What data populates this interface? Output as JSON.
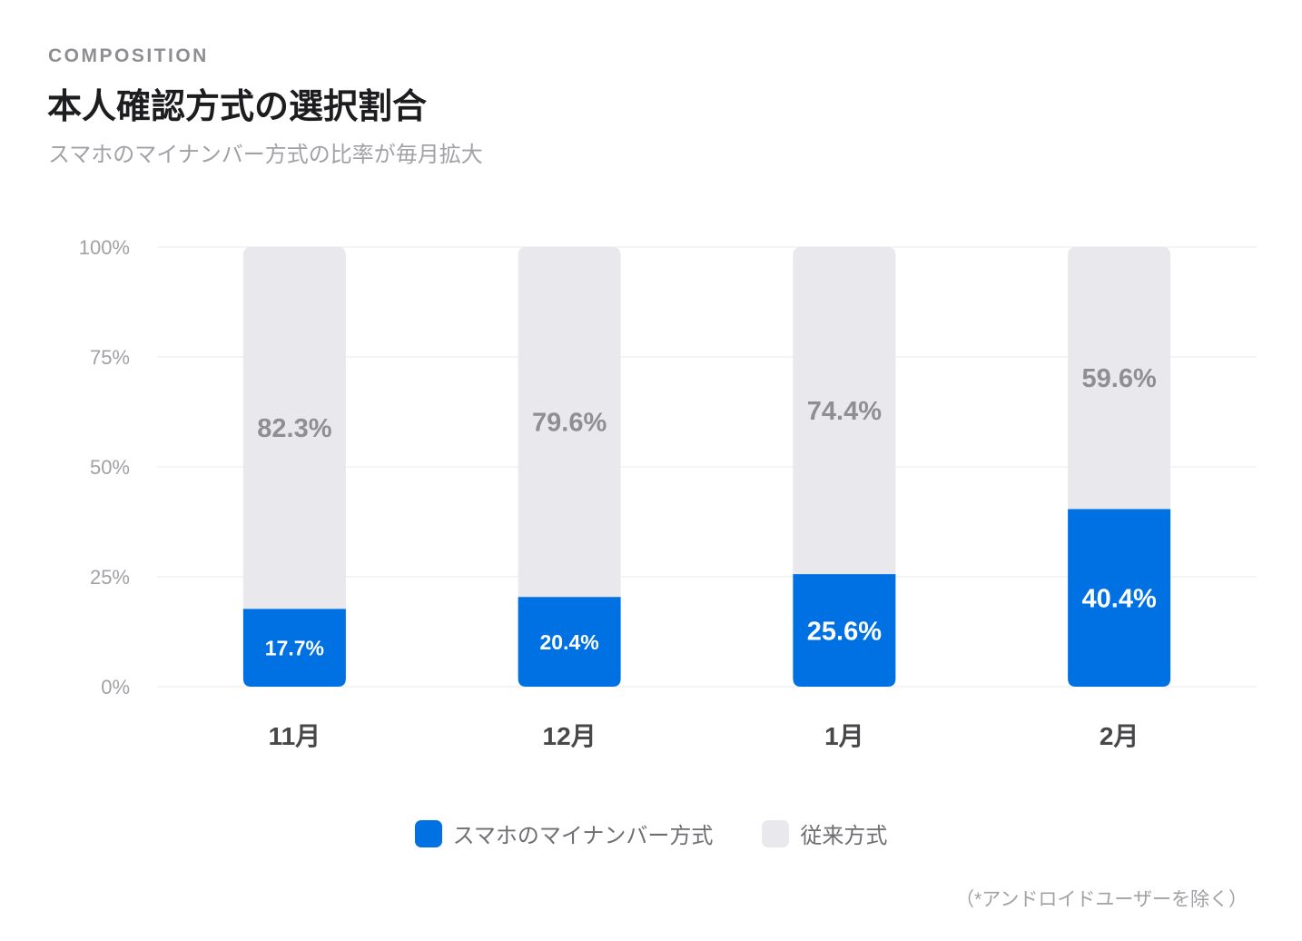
{
  "header": {
    "eyebrow": "COMPOSITION",
    "title": "本人確認方式の選択割合",
    "subtitle": "スマホのマイナンバー方式の比率が毎月拡大"
  },
  "footnote": "（*アンドロイドユーザーを除く）",
  "chart_data": {
    "type": "bar",
    "stacked": true,
    "categories": [
      "11月",
      "12月",
      "1月",
      "2月"
    ],
    "series": [
      {
        "name": "スマホのマイナンバー方式",
        "values": [
          17.7,
          20.4,
          25.6,
          40.4
        ],
        "labels": [
          "17.7%",
          "20.4%",
          "25.6%",
          "40.4%"
        ],
        "color": "#0071e3"
      },
      {
        "name": "従来方式",
        "values": [
          82.3,
          79.6,
          74.4,
          59.6
        ],
        "labels": [
          "82.3%",
          "79.6%",
          "74.4%",
          "59.6%"
        ],
        "color": "#e8e8ed"
      }
    ],
    "ylim": [
      0,
      100
    ],
    "yticks": [
      0,
      25,
      50,
      75,
      100
    ],
    "ytick_labels": [
      "0%",
      "25%",
      "50%",
      "75%",
      "100%"
    ],
    "grid": true,
    "legend": "bottom-center"
  }
}
